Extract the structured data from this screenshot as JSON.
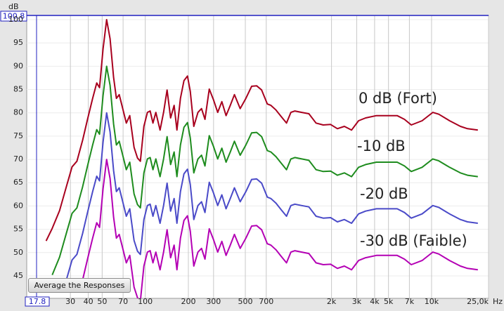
{
  "chart_data": {
    "type": "line",
    "xscale": "log",
    "x": [
      20.3,
      22.4,
      25.2,
      28.2,
      30.8,
      33.3,
      36.5,
      39.5,
      42.9,
      45.8,
      47.9,
      50.7,
      53.7,
      56.8,
      60.1,
      62.9,
      65.8,
      69.6,
      73.7,
      77.9,
      83.5,
      88.3,
      92.4,
      97.8,
      103.5,
      108.2,
      113.2,
      118.5,
      126.8,
      134.2,
      142,
      150.3,
      159,
      166.4,
      176,
      186.3,
      197.1,
      206.3,
      218.3,
      233.4,
      247.1,
      261.4,
      280,
      299.6,
      320.5,
      342.8,
      366.8,
      392.4,
      419.7,
      460.4,
      504.8,
      553.6,
      599.9,
      649.8,
      712.5,
      755,
      818.8,
      890,
      970,
      1040,
      1110,
      1240,
      1390,
      1560,
      1750,
      1970,
      2200,
      2460,
      2760,
      3090,
      3460,
      4120,
      4870,
      5750,
      6470,
      7220,
      8590,
      10200,
      11230,
      13370,
      15900,
      17810,
      21050
    ],
    "series": [
      {
        "name": "0 dB (Fort)",
        "color": "#a8001e",
        "values": [
          52.5,
          55.2,
          59,
          64.3,
          68.4,
          69.6,
          74.1,
          78.6,
          83.1,
          86.4,
          85.4,
          93.7,
          100,
          95.9,
          87.6,
          83.1,
          83.9,
          80.9,
          77.8,
          79.4,
          72.6,
          70.3,
          69.6,
          77.1,
          80.1,
          80.4,
          77.8,
          80.1,
          76.3,
          80.1,
          84.9,
          78.9,
          81.6,
          76.3,
          83.1,
          86.9,
          87.9,
          84.6,
          77.1,
          80.1,
          80.9,
          78.6,
          85.1,
          82.8,
          80.1,
          82.4,
          79.4,
          81.6,
          83.9,
          80.9,
          83.1,
          85.7,
          85.8,
          84.9,
          81.9,
          81.6,
          80.6,
          79.2,
          77.8,
          80.1,
          80.4,
          80.1,
          79.8,
          77.8,
          77.4,
          77.5,
          76.6,
          77.1,
          76.3,
          78.3,
          78.9,
          79.4,
          79.4,
          79.4,
          78.6,
          77.4,
          78.3,
          80.1,
          79.7,
          78.3,
          77.1,
          76.6,
          76.3
        ]
      },
      {
        "name": "-10 dB",
        "color": "#1e8c1e",
        "values": [
          null,
          45.2,
          49,
          54.3,
          58.4,
          59.6,
          64.1,
          68.6,
          73.1,
          76.4,
          75.4,
          83.7,
          90,
          85.9,
          77.6,
          73.1,
          73.9,
          70.9,
          67.8,
          69.4,
          62.6,
          60.3,
          59.6,
          67.1,
          70.1,
          70.4,
          67.8,
          70.1,
          66.3,
          70.1,
          74.9,
          68.9,
          71.6,
          66.3,
          73.1,
          76.9,
          77.9,
          74.6,
          67.1,
          70.1,
          70.9,
          68.6,
          75.1,
          72.8,
          70.1,
          72.4,
          69.4,
          71.6,
          73.9,
          70.9,
          73.1,
          75.7,
          75.8,
          74.9,
          71.9,
          71.6,
          70.6,
          69.2,
          67.8,
          70.1,
          70.4,
          70.1,
          69.8,
          67.8,
          67.4,
          67.5,
          66.6,
          67.1,
          66.3,
          68.3,
          68.9,
          69.4,
          69.4,
          69.4,
          68.6,
          67.4,
          68.3,
          70.1,
          69.7,
          68.3,
          67.1,
          66.6,
          66.3
        ]
      },
      {
        "name": "-20 dB",
        "color": "#4a4ac8",
        "values": [
          null,
          null,
          null,
          44.3,
          48.4,
          49.6,
          54.1,
          58.6,
          63.1,
          66.4,
          65.4,
          73.7,
          80,
          75.9,
          67.6,
          63.1,
          63.9,
          60.9,
          57.8,
          59.4,
          52.6,
          50.3,
          49.6,
          57.1,
          60.1,
          60.4,
          57.8,
          60.1,
          56.3,
          60.1,
          64.9,
          58.9,
          61.6,
          56.3,
          63.1,
          66.9,
          67.9,
          64.6,
          57.1,
          60.1,
          60.9,
          58.6,
          65.1,
          62.8,
          60.1,
          62.4,
          59.4,
          61.6,
          63.9,
          60.9,
          63.1,
          65.7,
          65.8,
          64.9,
          61.9,
          61.6,
          60.6,
          59.2,
          57.8,
          60.1,
          60.4,
          60.1,
          59.8,
          57.8,
          57.4,
          57.5,
          56.6,
          57.1,
          56.3,
          58.3,
          58.9,
          59.4,
          59.4,
          59.4,
          58.6,
          57.4,
          58.3,
          60.1,
          59.7,
          58.3,
          57.1,
          56.6,
          56.3
        ]
      },
      {
        "name": "-30 dB (Faible)",
        "color": "#b400b4",
        "values": [
          null,
          null,
          null,
          null,
          null,
          null,
          44.1,
          48.6,
          53.1,
          56.4,
          55.4,
          63.7,
          70,
          65.9,
          57.6,
          53.1,
          53.9,
          50.9,
          47.8,
          49.4,
          42.6,
          40.3,
          39.6,
          47.1,
          50.1,
          50.4,
          47.8,
          50.1,
          46.3,
          50.1,
          54.9,
          48.9,
          51.6,
          46.3,
          53.1,
          56.9,
          57.9,
          54.6,
          47.1,
          50.1,
          50.9,
          48.6,
          55.1,
          52.8,
          50.1,
          52.4,
          49.4,
          51.6,
          53.9,
          50.9,
          53.1,
          55.7,
          55.8,
          54.9,
          51.9,
          51.6,
          50.6,
          49.2,
          47.8,
          50.1,
          50.4,
          50.1,
          49.8,
          47.8,
          47.4,
          47.5,
          46.6,
          47.1,
          46.3,
          48.3,
          48.9,
          49.4,
          49.4,
          49.4,
          48.6,
          47.4,
          48.3,
          50.1,
          49.7,
          48.3,
          47.1,
          46.6,
          46.3
        ]
      }
    ],
    "xlim": [
      17.8,
      25000
    ],
    "ylim": [
      40.2,
      100.8
    ],
    "xticks": [
      30,
      40,
      50,
      70,
      100,
      200,
      300,
      500,
      700,
      {
        "value": 2000,
        "label": "2k"
      },
      {
        "value": 3000,
        "label": "3k"
      },
      {
        "value": 4000,
        "label": "4k"
      },
      {
        "value": 5000,
        "label": "5k"
      },
      {
        "value": 7000,
        "label": "7k"
      },
      {
        "value": 10000,
        "label": "10k"
      },
      {
        "value": 25000,
        "label": "25,0k"
      }
    ],
    "yticks": [
      45,
      50,
      55,
      60,
      65,
      70,
      75,
      80,
      85,
      90,
      95,
      100
    ],
    "x_unit": "Hz",
    "y_unit": "dB",
    "grid": true
  },
  "controls": {
    "button": "Average the Responses"
  }
}
